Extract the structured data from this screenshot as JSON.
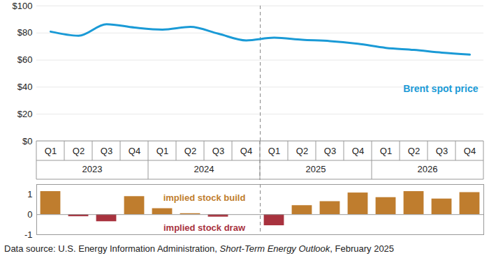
{
  "chart_data": [
    {
      "type": "line",
      "categories": [
        "Q1",
        "Q2",
        "Q3",
        "Q4",
        "Q1",
        "Q2",
        "Q3",
        "Q4",
        "Q1",
        "Q2",
        "Q3",
        "Q4",
        "Q1",
        "Q2",
        "Q3",
        "Q4"
      ],
      "groups": [
        {
          "label": "2023",
          "span": 4
        },
        {
          "label": "2024",
          "span": 4
        },
        {
          "label": "2025",
          "span": 4
        },
        {
          "label": "2026",
          "span": 4
        }
      ],
      "divider_at": 8,
      "values": [
        81,
        78,
        86.5,
        84,
        82.5,
        84.5,
        79.5,
        74.5,
        76.5,
        75,
        74,
        72,
        69,
        67.5,
        65.5,
        64
      ],
      "color": "#1a9ad6",
      "ylim": [
        0,
        100
      ],
      "yticks": [
        {
          "value": 0,
          "label": "$0"
        },
        {
          "value": 20,
          "label": "$20"
        },
        {
          "value": 40,
          "label": "$40"
        },
        {
          "value": 60,
          "label": "$60"
        },
        {
          "value": 80,
          "label": "$80"
        },
        {
          "value": 100,
          "label": "$100"
        }
      ],
      "grid": true,
      "annotations": [
        {
          "text": "Brent spot price",
          "color": "#1a9ad6"
        }
      ]
    },
    {
      "type": "bar",
      "categories": [
        "Q1",
        "Q2",
        "Q3",
        "Q4",
        "Q1",
        "Q2",
        "Q3",
        "Q4",
        "Q1",
        "Q2",
        "Q3",
        "Q4",
        "Q1",
        "Q2",
        "Q3",
        "Q4"
      ],
      "divider_at": 8,
      "values": [
        1.15,
        -0.1,
        -0.35,
        0.9,
        0.3,
        0.05,
        -0.12,
        0,
        -0.55,
        0.45,
        0.65,
        1.08,
        0.85,
        1.15,
        0.78,
        1.1
      ],
      "colors": [
        "#bf7d2e",
        "#a8323e",
        "#a8323e",
        "#bf7d2e",
        "#bf7d2e",
        "#bf7d2e",
        "#a8323e",
        "#bf7d2e",
        "#a8323e",
        "#bf7d2e",
        "#bf7d2e",
        "#bf7d2e",
        "#bf7d2e",
        "#bf7d2e",
        "#bf7d2e",
        "#bf7d2e"
      ],
      "ylim": [
        -1,
        1.5
      ],
      "yticks": [
        -1,
        0,
        1
      ],
      "grid": false,
      "tick_labels": "y",
      "annotations": [
        {
          "text": "implied stock build",
          "color": "#bf7d2e"
        },
        {
          "text": "implied stock draw",
          "color": "#a8323e"
        }
      ]
    }
  ],
  "caption": {
    "text": "Data source: U.S. Energy Information Administration, Short-Term Energy Outlook, February 2025",
    "italic": "Short-Term Energy Outlook"
  }
}
